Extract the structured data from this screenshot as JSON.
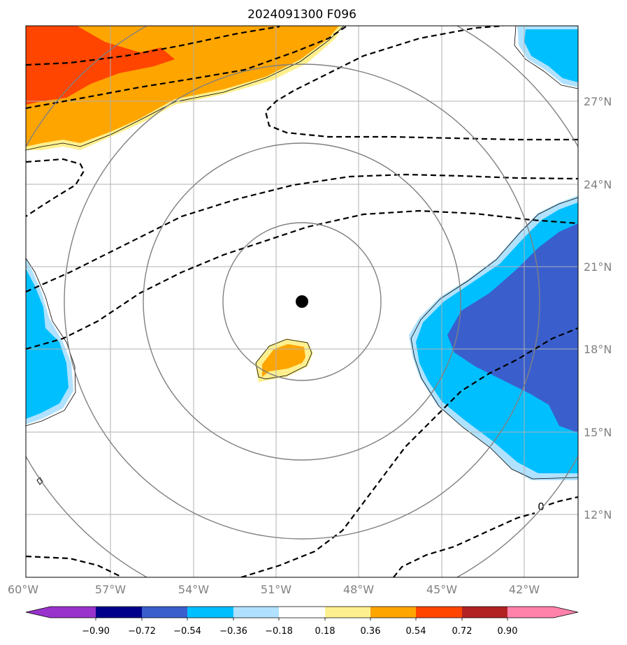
{
  "title": "2024091300 F096",
  "map": {
    "lon_range": [
      -60,
      -40
    ],
    "lat_range": [
      9,
      29
    ],
    "lon_ticks": [
      "60°W",
      "57°W",
      "54°W",
      "51°W",
      "48°W",
      "45°W",
      "42°W"
    ],
    "lat_ticks": [
      "27°N",
      "24°N",
      "21°N",
      "18°N",
      "15°N",
      "12°N"
    ],
    "grid": true,
    "center_marker": {
      "lon": -50,
      "lat": 19.8,
      "color": "#000000"
    },
    "range_rings": "concentric grey circles centred on marker",
    "contour_label": "0"
  },
  "colorbar": {
    "tick_labels": [
      "−0.90",
      "−0.72",
      "−0.54",
      "−0.36",
      "−0.18",
      "0.18",
      "0.36",
      "0.54",
      "0.72",
      "0.90"
    ],
    "colors": [
      "#9932cc",
      "#00008b",
      "#3a5fcd",
      "#00bfff",
      "#b0e2ff",
      "#ffffff",
      "#fff08f",
      "#ffa500",
      "#ff4500",
      "#b22222",
      "#ff82ab"
    ],
    "extend": "both"
  },
  "fill_colors": {
    "orange": "#ffa500",
    "red_orange": "#ff4500",
    "light_yellow": "#fff08f",
    "deep_sky_blue": "#00bfff",
    "light_blue": "#b0e2ff",
    "royal_blue": "#3a5fcd"
  }
}
